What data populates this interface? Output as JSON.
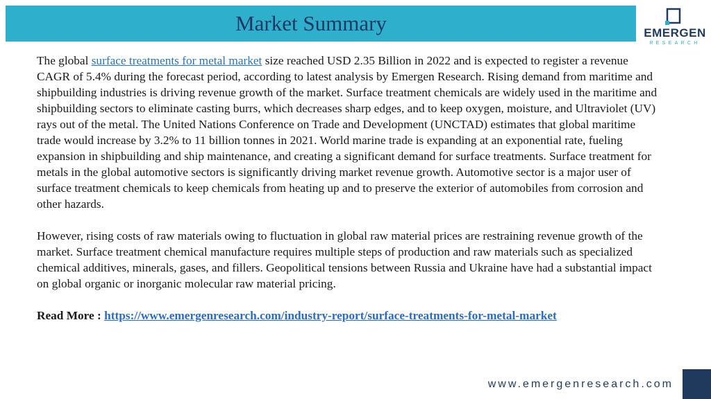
{
  "header": {
    "title": "Market Summary",
    "logo_name": "EMERGEN",
    "logo_sub": "RESEARCH"
  },
  "colors": {
    "title_bar": "#2eb0cd",
    "title_text": "#1f3864",
    "brand_navy": "#1f3a5c",
    "link": "#2a74b8"
  },
  "body": {
    "p1_prefix": "The global ",
    "p1_link": "surface treatments for metal market",
    "p1_rest": " size reached USD 2.35 Billion in 2022 and is expected to register a revenue CAGR of 5.4% during the forecast period, according to latest analysis by Emergen Research. Rising demand from maritime and shipbuilding industries is driving revenue growth of the market. Surface treatment chemicals are widely used in the maritime and shipbuilding sectors to eliminate casting burrs, which decreases sharp edges, and to keep oxygen, moisture, and Ultraviolet (UV) rays out of the metal. The United Nations Conference on Trade and Development (UNCTAD) estimates that global maritime trade would increase by 3.2% to 11 billion tonnes in 2021. World marine trade is expanding at an exponential rate, fueling expansion in shipbuilding and ship maintenance, and creating a significant demand for surface treatments. Surface treatment for metals in the global automotive sectors is significantly driving market revenue growth. Automotive sector is a major user of surface treatment chemicals to keep chemicals from heating up and to preserve the exterior of automobiles from corrosion and other hazards.",
    "p2": "However, rising costs of raw materials owing to fluctuation in global raw material prices are restraining revenue growth of the market. Surface treatment chemical manufacture requires multiple steps of production and raw materials such as specialized chemical additives, minerals, gases, and fillers. Geopolitical tensions between Russia and Ukraine have had a substantial impact on global organic or inorganic molecular raw material pricing.",
    "read_more_label": "Read More : ",
    "read_more_url": "https://www.emergenresearch.com/industry-report/surface-treatments-for-metal-market"
  },
  "footer": {
    "website": "www.emergenresearch.com"
  }
}
